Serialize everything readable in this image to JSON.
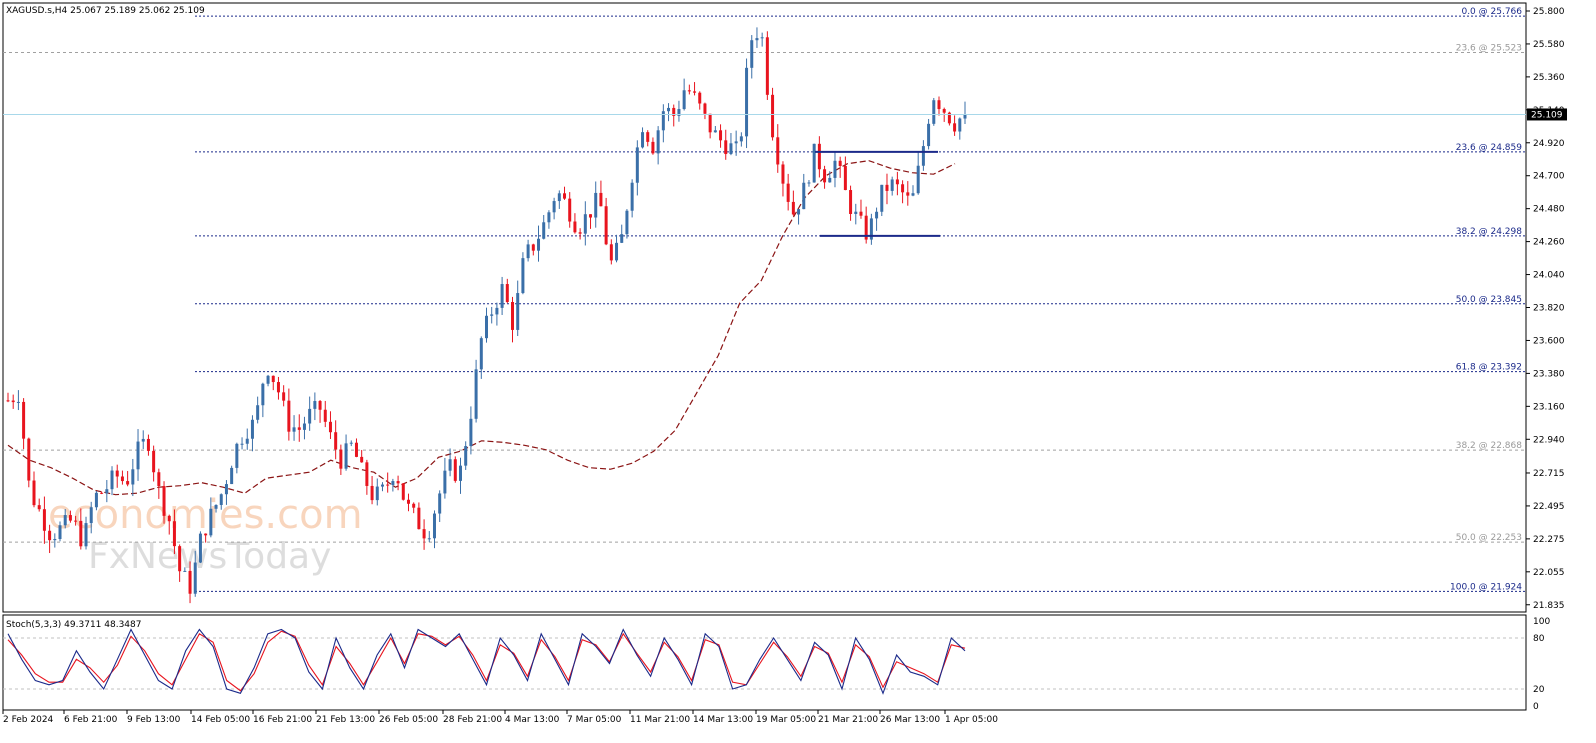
{
  "header": {
    "symbol_line": "XAGUSD.s,H4  25.067 25.189 25.062 25.109"
  },
  "watermark": {
    "line1": "economies.com",
    "line2": "FxNewsToday"
  },
  "current_price": "25.109",
  "indicator": {
    "label": "Stoch(5,3,3) 49.3711 48.3487",
    "levels": [
      "100",
      "80",
      "20",
      "0"
    ]
  },
  "colors": {
    "bull": "#3a6fa8",
    "bear": "#e8141e",
    "fib_major": "#1b2a8a",
    "fib_minor": "#a0a0a0",
    "ma": "#8b1414",
    "price_line": "#a8d8ea",
    "stoch_main": "#1b2a8a",
    "stoch_signal": "#e8141e"
  },
  "chart_data": {
    "type": "candlestick",
    "y_ticks": [
      "25.800",
      "25.580",
      "25.360",
      "25.140",
      "24.920",
      "24.700",
      "24.480",
      "24.260",
      "24.040",
      "23.820",
      "23.600",
      "23.380",
      "23.160",
      "22.940",
      "22.715",
      "22.495",
      "22.275",
      "22.055",
      "21.835"
    ],
    "x_ticks": [
      "2 Feb 2024",
      "6 Feb 21:00",
      "9 Feb 13:00",
      "14 Feb 05:00",
      "16 Feb 21:00",
      "21 Feb 13:00",
      "26 Feb 05:00",
      "28 Feb 21:00",
      "4 Mar 13:00",
      "7 Mar 05:00",
      "11 Mar 21:00",
      "14 Mar 13:00",
      "19 Mar 05:00",
      "21 Mar 21:00",
      "26 Mar 13:00",
      "1 Apr 05:00"
    ],
    "ylim": [
      21.8,
      25.84
    ],
    "fib_levels": [
      {
        "label": "0.0 @ 25.766",
        "value": 25.766,
        "style": "major"
      },
      {
        "label": "23.6 @ 25.523",
        "value": 25.523,
        "style": "minor"
      },
      {
        "label": "23.6 @ 24.859",
        "value": 24.859,
        "style": "major"
      },
      {
        "label": "38.2 @ 24.298",
        "value": 24.298,
        "style": "major"
      },
      {
        "label": "50.0 @ 23.845",
        "value": 23.845,
        "style": "major"
      },
      {
        "label": "61.8 @ 23.392",
        "value": 23.392,
        "style": "major"
      },
      {
        "label": "38.2 @ 22.868",
        "value": 22.868,
        "style": "minor"
      },
      {
        "label": "50.0 @ 22.253",
        "value": 22.253,
        "style": "minor"
      },
      {
        "label": "100.0 @ 21.924",
        "value": 21.924,
        "style": "major"
      }
    ],
    "close_path": [
      23.2,
      23.25,
      22.6,
      22.45,
      22.3,
      22.35,
      22.4,
      22.25,
      22.55,
      22.6,
      22.7,
      22.65,
      22.85,
      22.95,
      22.6,
      22.4,
      22.05,
      21.95,
      22.3,
      22.45,
      22.6,
      22.85,
      23.0,
      23.05,
      23.45,
      23.3,
      23.05,
      23.0,
      23.1,
      23.15,
      22.95,
      22.8,
      22.9,
      22.7,
      22.55,
      22.6,
      22.75,
      22.5,
      22.4,
      22.3,
      22.55,
      22.75,
      22.7,
      23.1,
      23.6,
      23.8,
      23.95,
      23.7,
      24.15,
      24.25,
      24.4,
      24.6,
      24.5,
      24.35,
      24.45,
      24.55,
      24.1,
      24.25,
      24.7,
      25.05,
      24.9,
      25.15,
      25.1,
      25.3,
      25.2,
      25.05,
      24.95,
      24.9,
      24.85,
      25.6,
      25.7,
      25.05,
      24.7,
      24.45,
      24.6,
      24.85,
      24.7,
      24.8,
      24.55,
      24.4,
      24.3,
      24.55,
      24.65,
      24.6,
      24.5,
      24.85,
      25.25,
      25.15,
      25.05,
      25.109
    ],
    "ma_path": [
      22.9,
      22.8,
      22.75,
      22.68,
      22.6,
      22.57,
      22.58,
      22.62,
      22.63,
      22.65,
      22.62,
      22.58,
      22.68,
      22.7,
      22.72,
      22.8,
      22.75,
      22.72,
      22.62,
      22.68,
      22.82,
      22.86,
      22.93,
      22.92,
      22.9,
      22.87,
      22.8,
      22.75,
      22.74,
      22.78,
      22.86,
      23.0,
      23.25,
      23.5,
      23.85,
      24.0,
      24.3,
      24.55,
      24.7,
      24.78,
      24.8,
      24.75,
      24.72,
      24.71,
      24.78
    ],
    "stoch_main": [
      85,
      55,
      30,
      25,
      30,
      65,
      40,
      20,
      55,
      90,
      60,
      30,
      20,
      65,
      90,
      70,
      20,
      15,
      45,
      85,
      90,
      80,
      40,
      20,
      80,
      45,
      20,
      60,
      85,
      45,
      90,
      80,
      70,
      85,
      55,
      25,
      80,
      60,
      30,
      85,
      55,
      25,
      85,
      70,
      50,
      90,
      60,
      35,
      80,
      55,
      25,
      85,
      70,
      20,
      25,
      55,
      80,
      55,
      30,
      75,
      60,
      20,
      80,
      55,
      15,
      60,
      40,
      35,
      25,
      80,
      65
    ],
    "stoch_signal": [
      78,
      60,
      38,
      28,
      28,
      55,
      45,
      28,
      48,
      82,
      65,
      38,
      25,
      55,
      85,
      75,
      30,
      18,
      38,
      75,
      88,
      82,
      48,
      25,
      70,
      50,
      25,
      52,
      80,
      50,
      85,
      82,
      72,
      82,
      60,
      30,
      72,
      62,
      35,
      78,
      58,
      30,
      78,
      72,
      52,
      85,
      62,
      40,
      75,
      58,
      30,
      78,
      72,
      28,
      25,
      50,
      75,
      58,
      35,
      70,
      62,
      28,
      72,
      58,
      22,
      52,
      45,
      38,
      28,
      72,
      68
    ]
  }
}
